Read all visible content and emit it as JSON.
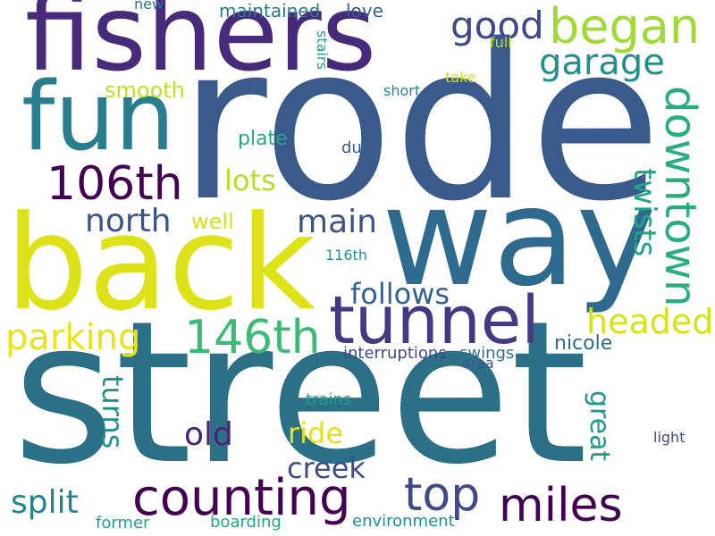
{
  "words": {
    "rode": {
      "text": "rode",
      "color": "#3b5a8c"
    },
    "street": {
      "text": "street",
      "color": "#2c7088"
    },
    "fishers": {
      "text": "fishers",
      "color": "#472a7a"
    },
    "fun": {
      "text": "fun",
      "color": "#287d8e"
    },
    "back": {
      "text": "back",
      "color": "#dde318"
    },
    "way": {
      "text": "way",
      "color": "#2f6b8e"
    },
    "tunnel": {
      "text": "tunnel",
      "color": "#443a83"
    },
    "began": {
      "text": "began",
      "color": "#a0da39"
    },
    "good": {
      "text": "good",
      "color": "#3e4989"
    },
    "garage": {
      "text": "garage",
      "color": "#21908d"
    },
    "downtown": {
      "text": "downtown",
      "color": "#27ad81"
    },
    "106th": {
      "text": "106th",
      "color": "#440154"
    },
    "146th": {
      "text": "146th",
      "color": "#3bbb75"
    },
    "counting": {
      "text": "counting",
      "color": "#440154"
    },
    "miles": {
      "text": "miles",
      "color": "#440154"
    },
    "top": {
      "text": "top",
      "color": "#3e4a89"
    },
    "parking": {
      "text": "parking",
      "color": "#e8e419"
    },
    "headed": {
      "text": "headed",
      "color": "#d8e219"
    },
    "north": {
      "text": "north",
      "color": "#3b528b"
    },
    "main": {
      "text": "main",
      "color": "#3b528b"
    },
    "lots": {
      "text": "lots",
      "color": "#b5de2b"
    },
    "smooth": {
      "text": "smooth",
      "color": "#c0df25"
    },
    "plate": {
      "text": "plate",
      "color": "#25a784"
    },
    "well": {
      "text": "well",
      "color": "#d2e21b"
    },
    "follows": {
      "text": "follows",
      "color": "#33638d"
    },
    "twists": {
      "text": "twists",
      "color": "#20a486"
    },
    "old": {
      "text": "old",
      "color": "#482475"
    },
    "ride": {
      "text": "ride",
      "color": "#e1e419"
    },
    "creek": {
      "text": "creek",
      "color": "#3d4d8a"
    },
    "split": {
      "text": "split",
      "color": "#26828e"
    },
    "turns": {
      "text": "turns",
      "color": "#21918c"
    },
    "great": {
      "text": "great",
      "color": "#1f988b"
    },
    "nicole": {
      "text": "nicole",
      "color": "#2f6c8e"
    },
    "maintained": {
      "text": "maintained",
      "color": "#2a788e"
    },
    "love": {
      "text": "love",
      "color": "#355f8d"
    },
    "new": {
      "text": "new",
      "color": "#2a778e"
    },
    "stairs": {
      "text": "stairs",
      "color": "#1fa088"
    },
    "full": {
      "text": "full",
      "color": "#b8de29"
    },
    "take": {
      "text": "take",
      "color": "#d0e11c"
    },
    "short": {
      "text": "short",
      "color": "#24878e"
    },
    "due": {
      "text": "due",
      "color": "#365c8d"
    },
    "116th": {
      "text": "116th",
      "color": "#21908d"
    },
    "interruptions": {
      "text": "interruptions",
      "color": "#3f4788"
    },
    "swings": {
      "text": "swings",
      "color": "#2c738e"
    },
    "area": {
      "text": "area",
      "color": "#38588c"
    },
    "trains": {
      "text": "trains",
      "color": "#1f9e89"
    },
    "light": {
      "text": "light",
      "color": "#3e4c8a"
    },
    "former": {
      "text": "former",
      "color": "#20a386"
    },
    "boarding": {
      "text": "boarding",
      "color": "#22a785"
    },
    "environment": {
      "text": "environment",
      "color": "#21918c"
    }
  }
}
